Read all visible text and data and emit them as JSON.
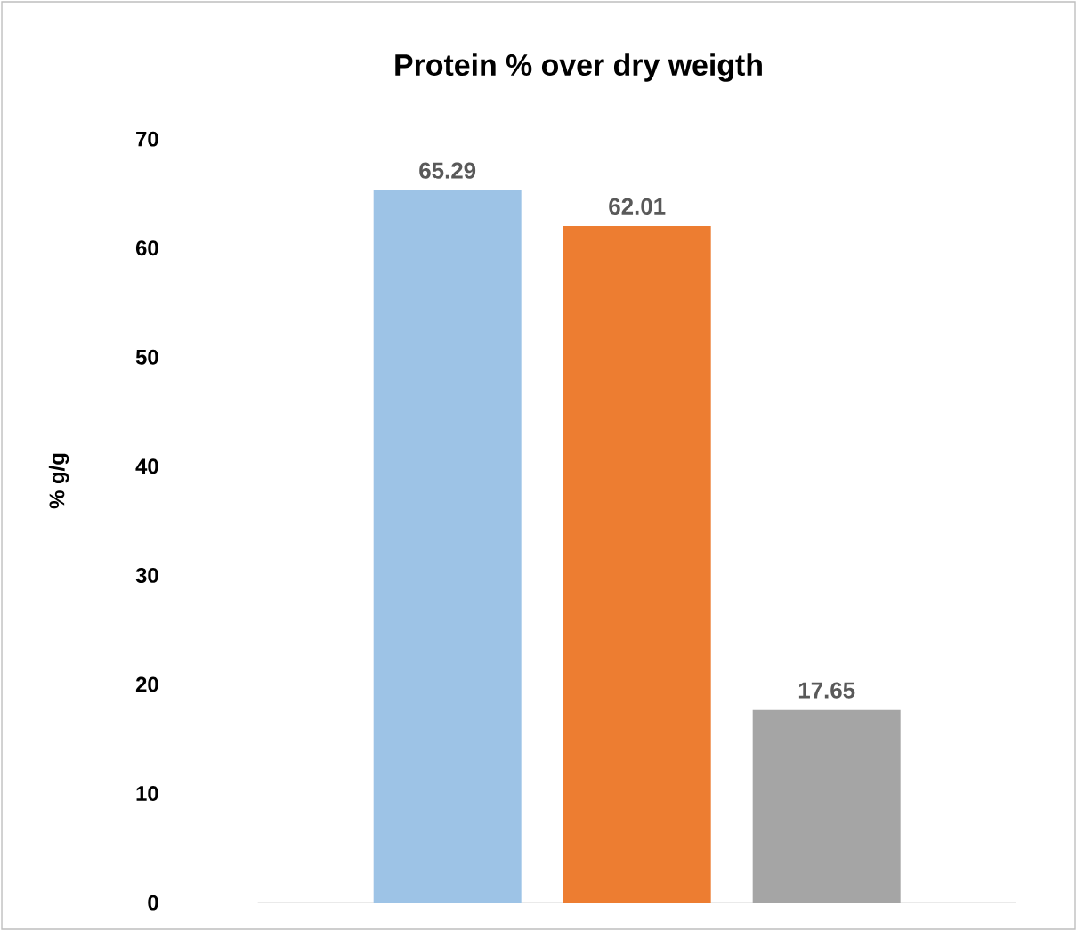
{
  "chart_data": {
    "type": "bar",
    "title": "Protein % over dry weigth",
    "ylabel": "% g/g",
    "categories": [
      null,
      null,
      null
    ],
    "values": [
      65.29,
      62.01,
      17.65
    ],
    "colors": [
      "#9dc3e6",
      "#ed7d31",
      "#a5a5a5"
    ],
    "ylim": [
      0,
      70
    ],
    "yticks": [
      0,
      10,
      20,
      30,
      40,
      50,
      60,
      70
    ],
    "data_labels": true
  }
}
